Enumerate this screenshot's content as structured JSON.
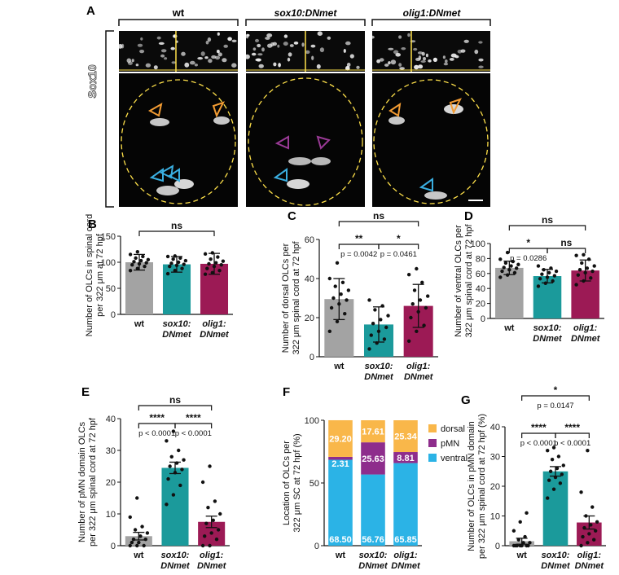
{
  "panelA": {
    "letter": "A",
    "stain": "Sox10",
    "columns": [
      "wt",
      "sox10:DNmet",
      "olig1:DNmet"
    ]
  },
  "chart_data": [
    {
      "panel": "B",
      "type": "bar",
      "categories": [
        [
          "wt"
        ],
        [
          "sox10:",
          "DNmet"
        ],
        [
          "olig1:",
          "DNmet"
        ]
      ],
      "ylabel": [
        "Number of OLCs in spinal cord",
        "per 322 μm at 72 hpf"
      ],
      "ylim": [
        0,
        150
      ],
      "yticks": [
        0,
        50,
        100,
        150
      ],
      "values": [
        100,
        96,
        97
      ],
      "errors": [
        15,
        15,
        20
      ],
      "points": [
        [
          84,
          88,
          92,
          95,
          97,
          99,
          101,
          103,
          105,
          108,
          111,
          115,
          120
        ],
        [
          78,
          84,
          88,
          92,
          94,
          96,
          98,
          100,
          103,
          106,
          108,
          111,
          112
        ],
        [
          77,
          80,
          84,
          88,
          92,
          95,
          97,
          99,
          102,
          106,
          110,
          116,
          118
        ]
      ],
      "comparisons": [
        {
          "from": 0,
          "to": 2,
          "stars": "ns",
          "p": ""
        }
      ]
    },
    {
      "panel": "C",
      "type": "bar",
      "categories": [
        [
          "wt"
        ],
        [
          "sox10:",
          "DNmet"
        ],
        [
          "olig1:",
          "DNmet"
        ]
      ],
      "ylabel": [
        "Number of dorsal OLCs per",
        "322 μm spinal cord at 72 hpf"
      ],
      "ylim": [
        0,
        60
      ],
      "yticks": [
        0,
        20,
        40,
        60
      ],
      "values": [
        29.5,
        16.5,
        26
      ],
      "errors": [
        10.5,
        9,
        11
      ],
      "points": [
        [
          13,
          18,
          22,
          25,
          27,
          29,
          30,
          32,
          34,
          36,
          38,
          40,
          48
        ],
        [
          4,
          7,
          9,
          11,
          13,
          15,
          17,
          19,
          21,
          24,
          26,
          29
        ],
        [
          8,
          13,
          16,
          20,
          23,
          25,
          27,
          29,
          31,
          34,
          38,
          42,
          45
        ]
      ],
      "comparisons": [
        {
          "from": 0,
          "to": 1,
          "stars": "**",
          "p": "p = 0.0042"
        },
        {
          "from": 1,
          "to": 2,
          "stars": "*",
          "p": "p = 0.0461"
        },
        {
          "from": 0,
          "to": 2,
          "stars": "ns",
          "p": ""
        }
      ]
    },
    {
      "panel": "D",
      "type": "bar",
      "categories": [
        [
          "wt"
        ],
        [
          "sox10:",
          "DNmet"
        ],
        [
          "olig1:",
          "DNmet"
        ]
      ],
      "ylabel": [
        "Number of ventral OLCs per",
        "322 μm spinal cord at 72 hpf"
      ],
      "ylim": [
        0,
        100
      ],
      "yticks": [
        0,
        20,
        40,
        60,
        80,
        100
      ],
      "values": [
        67.5,
        56.5,
        64
      ],
      "errors": [
        9,
        9,
        14
      ],
      "points": [
        [
          55,
          58,
          61,
          63,
          65,
          67,
          68,
          70,
          72,
          74,
          76,
          79,
          88
        ],
        [
          43,
          47,
          50,
          53,
          55,
          57,
          59,
          61,
          63,
          65,
          67,
          70
        ],
        [
          45,
          50,
          54,
          58,
          61,
          63,
          65,
          67,
          70,
          74,
          79,
          84,
          85
        ]
      ],
      "comparisons": [
        {
          "from": 0,
          "to": 1,
          "stars": "*",
          "p": "p = 0.0286"
        },
        {
          "from": 1,
          "to": 2,
          "stars": "ns",
          "p": ""
        },
        {
          "from": 0,
          "to": 2,
          "stars": "ns",
          "p": ""
        }
      ]
    },
    {
      "panel": "E",
      "type": "bar",
      "categories": [
        [
          "wt"
        ],
        [
          "sox10:",
          "DNmet"
        ],
        [
          "olig1:",
          "DNmet"
        ]
      ],
      "ylabel": [
        "Number of pMN domain OLCs",
        "per 322 μm spinal cord at 72 hpf"
      ],
      "ylim": [
        0,
        40
      ],
      "yticks": [
        0,
        10,
        20,
        30,
        40
      ],
      "values": [
        3,
        24.5,
        7.5
      ],
      "errors": [
        1.2,
        1.8,
        1.8
      ],
      "points": [
        [
          0,
          0,
          0,
          1,
          1,
          2,
          2,
          3,
          4,
          5,
          6,
          9,
          15
        ],
        [
          13,
          16,
          19,
          21,
          23,
          24,
          25,
          26,
          27,
          28,
          30,
          33,
          36
        ],
        [
          0,
          0,
          2,
          3,
          4,
          5,
          7,
          8,
          10,
          12,
          14,
          20,
          25
        ]
      ],
      "comparisons": [
        {
          "from": 0,
          "to": 1,
          "stars": "****",
          "p": "p < 0.0001"
        },
        {
          "from": 1,
          "to": 2,
          "stars": "****",
          "p": "p < 0.0001"
        },
        {
          "from": 0,
          "to": 2,
          "stars": "ns",
          "p": ""
        }
      ]
    },
    {
      "panel": "F",
      "type": "stacked-bar",
      "categories": [
        [
          "wt"
        ],
        [
          "sox10:",
          "DNmet"
        ],
        [
          "olig1:",
          "DNmet"
        ]
      ],
      "ylabel": [
        "Location of OLCs per",
        "322 μm SC at 72 hpf (%)"
      ],
      "ylim": [
        0,
        100
      ],
      "yticks": [
        0,
        50,
        100
      ],
      "series": [
        {
          "name": "ventral",
          "color": "#2bb3e6",
          "values": [
            68.5,
            56.76,
            65.85
          ],
          "labels": [
            "68.50",
            "56.76",
            "65.85"
          ]
        },
        {
          "name": "pMN",
          "color": "#8e2d8c",
          "values": [
            2.31,
            25.63,
            8.81
          ],
          "labels": [
            "2.31",
            "25.63",
            "8.81"
          ]
        },
        {
          "name": "dorsal",
          "color": "#f9b74a",
          "values": [
            29.2,
            17.61,
            25.34
          ],
          "labels": [
            "29.20",
            "17.61",
            "25.34"
          ]
        }
      ],
      "legend": "right"
    },
    {
      "panel": "G",
      "type": "bar",
      "categories": [
        [
          "wt"
        ],
        [
          "sox10:",
          "DNmet"
        ],
        [
          "olig1:",
          "DNmet"
        ]
      ],
      "ylabel": [
        "Number of OLCs in pMN domain",
        "per 322 μm spinal cord at 72 hpf (%)"
      ],
      "ylim": [
        0,
        40
      ],
      "yticks": [
        0,
        10,
        20,
        30,
        40
      ],
      "values": [
        1.5,
        25,
        7.8
      ],
      "errors": [
        1,
        1.6,
        2.2
      ],
      "points": [
        [
          0,
          0,
          0,
          0,
          0,
          0,
          0,
          1,
          1,
          2,
          3,
          5,
          8,
          11
        ],
        [
          16,
          19,
          21,
          22,
          23,
          24,
          25,
          26,
          27,
          29,
          30,
          32,
          33
        ],
        [
          0,
          1,
          2,
          3,
          4,
          5,
          6,
          7,
          8,
          10,
          13,
          18,
          32
        ]
      ],
      "comparisons": [
        {
          "from": 0,
          "to": 1,
          "stars": "****",
          "p": "p < 0.0001"
        },
        {
          "from": 1,
          "to": 2,
          "stars": "****",
          "p": "p < 0.0001"
        },
        {
          "from": 0,
          "to": 2,
          "stars": "*",
          "p": "p = 0.0147"
        }
      ]
    }
  ],
  "colors": {
    "wt": "#a3a3a3",
    "sox10": "#1b9a9b",
    "olig1": "#9c1a55",
    "ventral": "#2bb3e6",
    "pMN": "#8e2d8c",
    "dorsal": "#f9b74a"
  }
}
